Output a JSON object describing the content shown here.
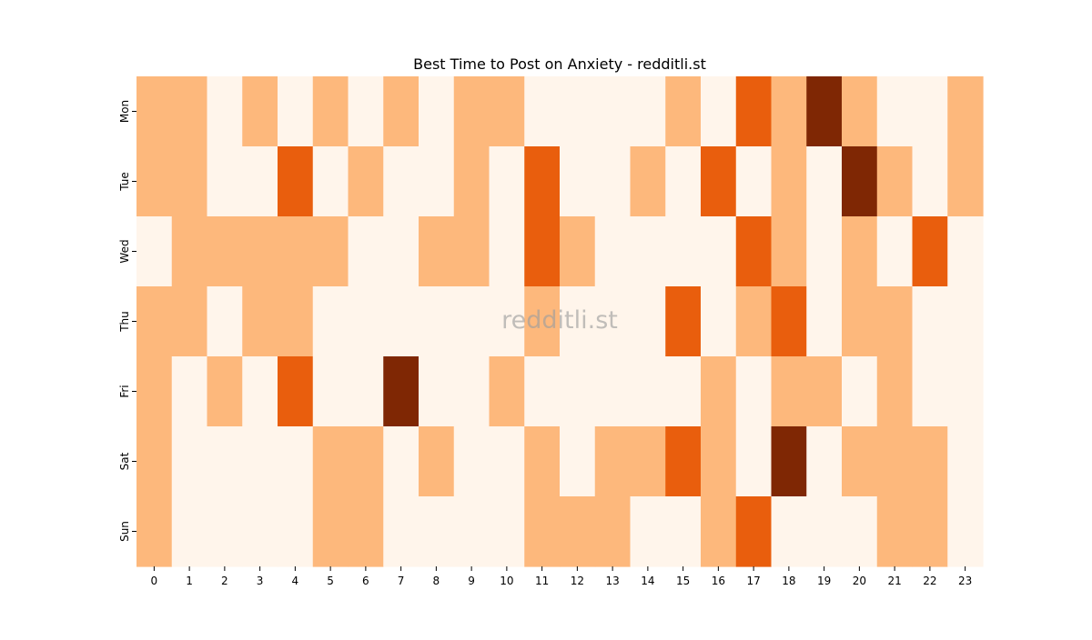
{
  "chart_data": {
    "type": "heatmap",
    "title": "Best Time to Post on Anxiety - redditli.st",
    "watermark": "redditli.st",
    "xlabel": "",
    "ylabel": "",
    "x": [
      0,
      1,
      2,
      3,
      4,
      5,
      6,
      7,
      8,
      9,
      10,
      11,
      12,
      13,
      14,
      15,
      16,
      17,
      18,
      19,
      20,
      21,
      22,
      23
    ],
    "y": [
      "Mon",
      "Tue",
      "Wed",
      "Thu",
      "Fri",
      "Sat",
      "Sun"
    ],
    "values": [
      [
        1,
        1,
        0,
        1,
        0,
        1,
        0,
        1,
        0,
        1,
        1,
        0,
        0,
        0,
        0,
        1,
        0,
        2,
        1,
        3,
        1,
        0,
        0,
        1
      ],
      [
        1,
        1,
        0,
        0,
        2,
        0,
        1,
        0,
        0,
        1,
        0,
        2,
        0,
        0,
        1,
        0,
        2,
        0,
        1,
        0,
        3,
        1,
        0,
        1
      ],
      [
        0,
        1,
        1,
        1,
        1,
        1,
        0,
        0,
        1,
        1,
        0,
        2,
        1,
        0,
        0,
        0,
        0,
        2,
        1,
        0,
        1,
        0,
        2,
        0
      ],
      [
        1,
        1,
        0,
        1,
        1,
        0,
        0,
        0,
        0,
        0,
        0,
        1,
        0,
        0,
        0,
        2,
        0,
        1,
        2,
        0,
        1,
        1,
        0,
        0
      ],
      [
        1,
        0,
        1,
        0,
        2,
        0,
        0,
        3,
        0,
        0,
        1,
        0,
        0,
        0,
        0,
        0,
        1,
        0,
        1,
        1,
        0,
        1,
        0,
        0
      ],
      [
        1,
        0,
        0,
        0,
        0,
        1,
        1,
        0,
        1,
        0,
        0,
        1,
        0,
        1,
        1,
        2,
        1,
        0,
        3,
        0,
        1,
        1,
        1,
        0
      ],
      [
        1,
        0,
        0,
        0,
        0,
        1,
        1,
        0,
        0,
        0,
        0,
        1,
        1,
        1,
        0,
        0,
        1,
        2,
        0,
        0,
        0,
        1,
        1,
        0
      ]
    ],
    "colors": [
      "#fff5eb",
      "#fdb87c",
      "#e95e0d",
      "#7f2704"
    ],
    "grid": false,
    "legend": "none"
  }
}
